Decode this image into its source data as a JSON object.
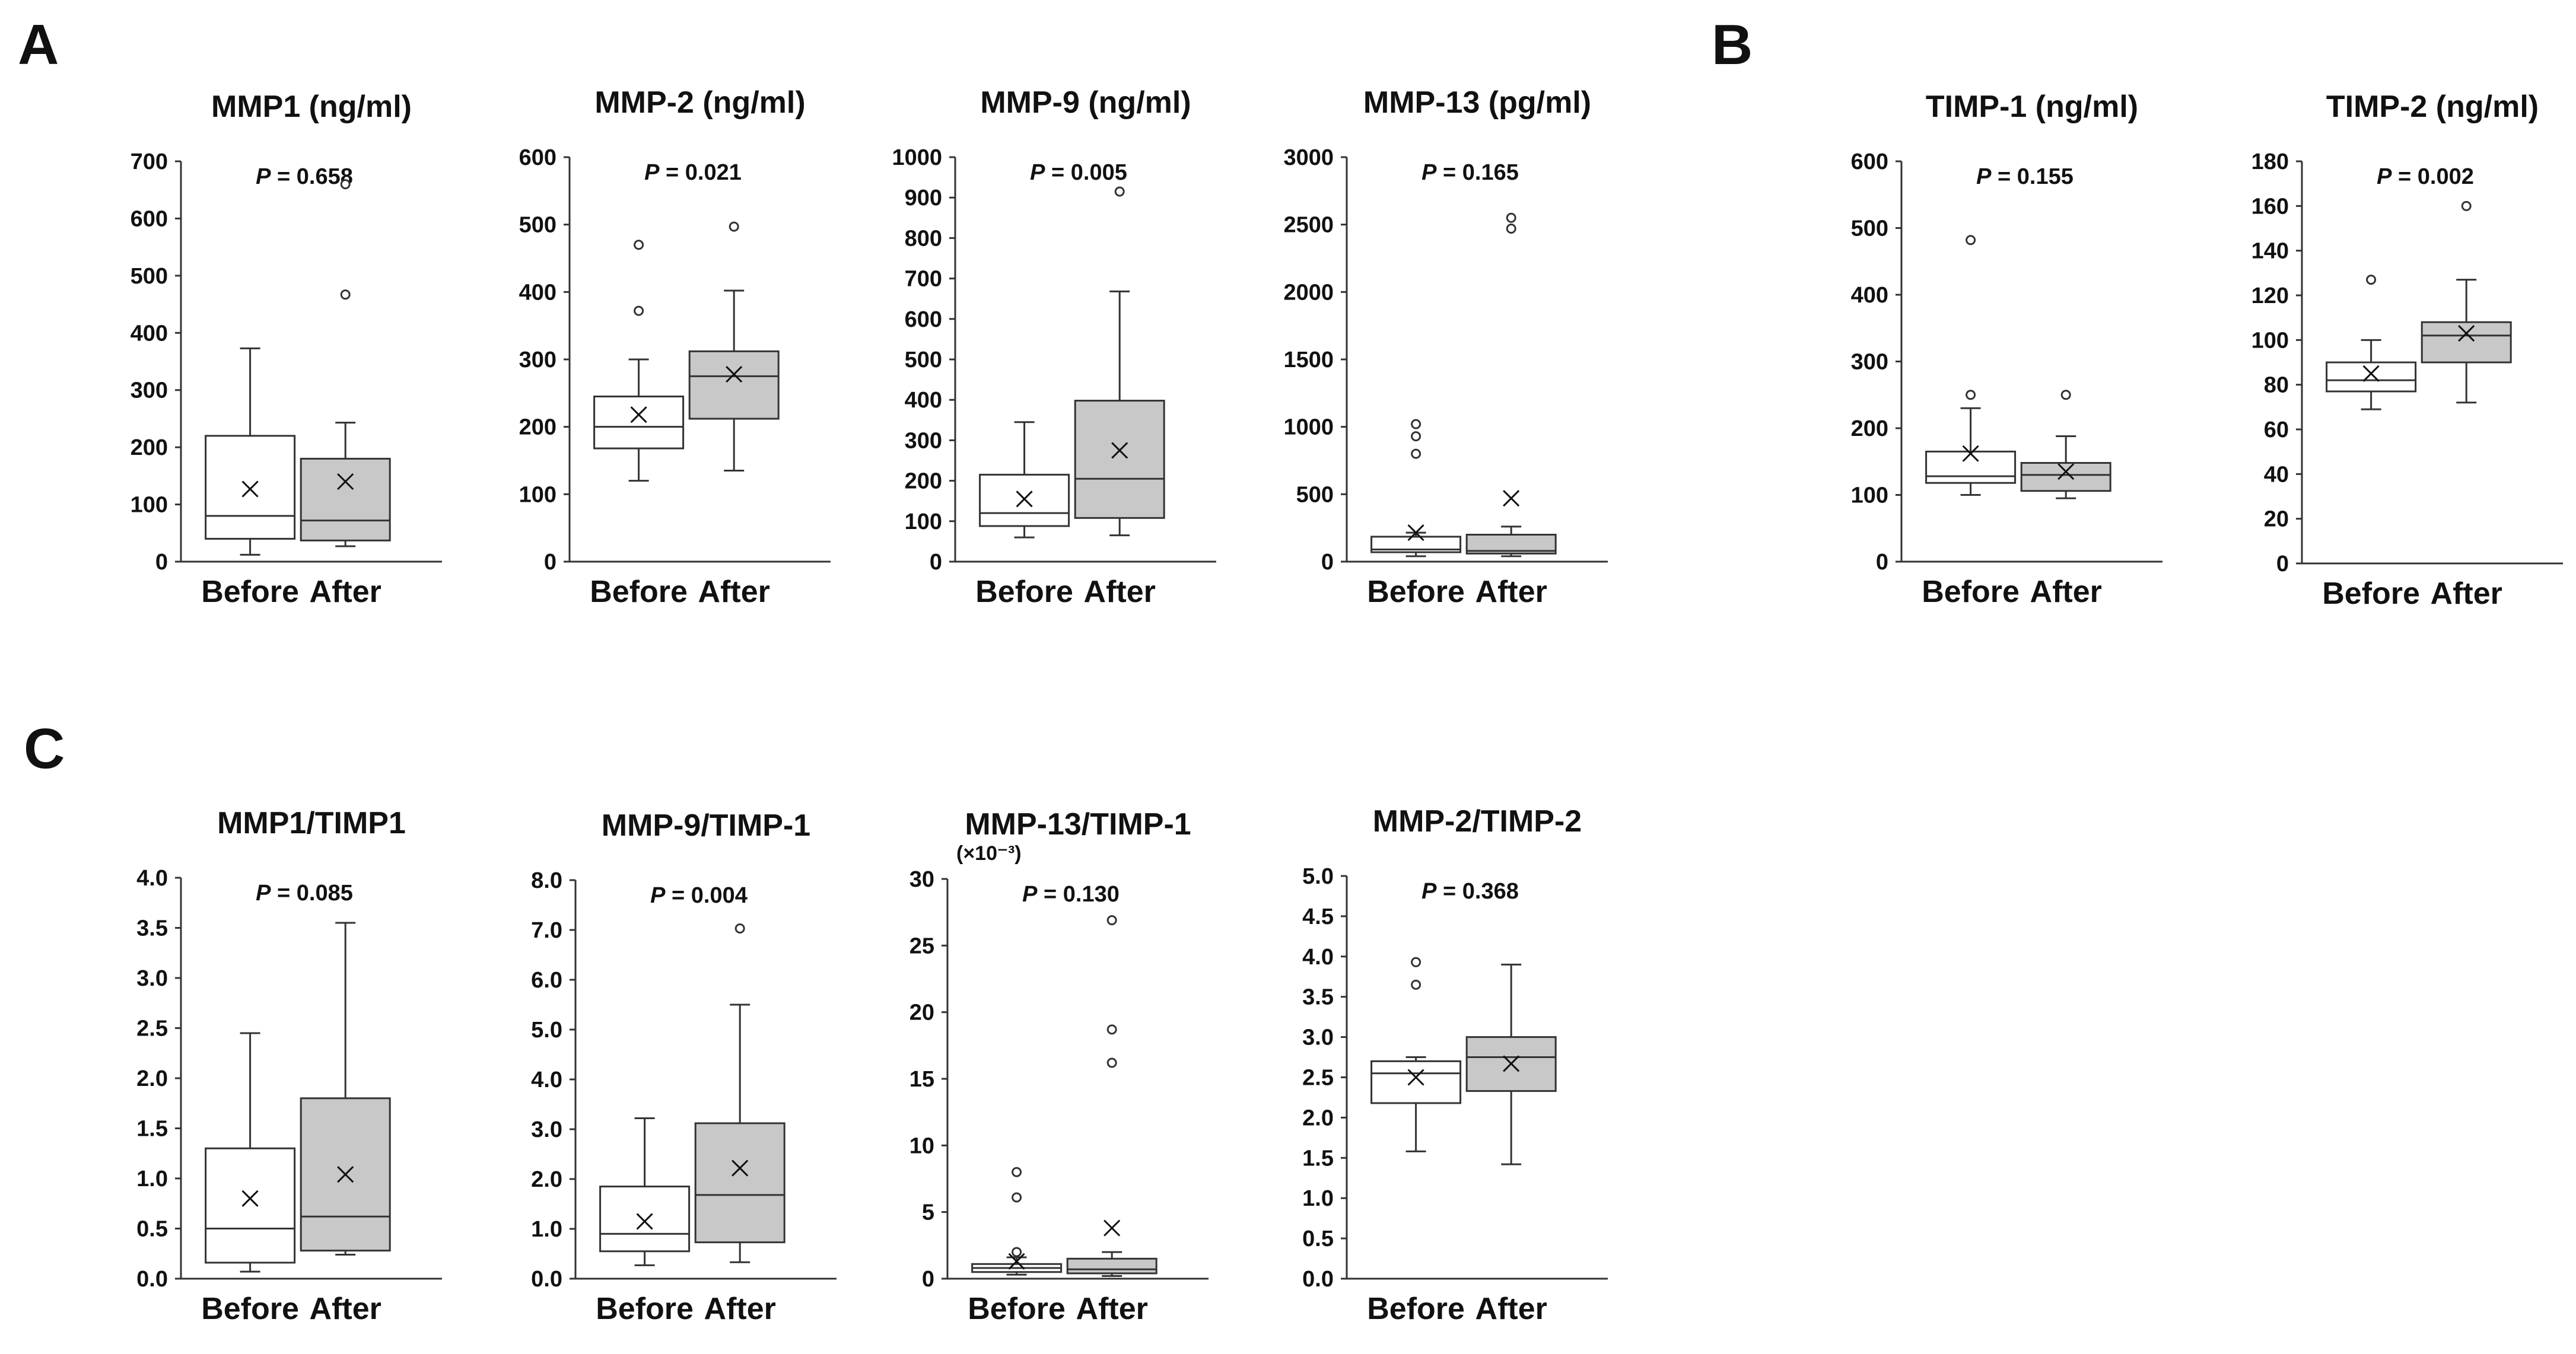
{
  "panels": [
    {
      "letter": "A"
    },
    {
      "letter": "B"
    },
    {
      "letter": "C"
    }
  ],
  "chart_data": [
    {
      "type": "box",
      "panel": "A",
      "title": "MMP1 (ng/ml)",
      "p_value": "P = 0.658",
      "ylim": [
        0,
        700
      ],
      "yticks": [
        "0",
        "100",
        "200",
        "300",
        "400",
        "500",
        "600",
        "700"
      ],
      "categories": [
        "Before",
        "After"
      ],
      "boxes": [
        {
          "name": "Before",
          "fill": "#ffffff",
          "whisker_low": 12,
          "q1": 40,
          "median": 80,
          "q3": 220,
          "whisker_high": 373,
          "mean": 127,
          "outliers": []
        },
        {
          "name": "After",
          "fill": "#c8c8c8",
          "whisker_low": 27,
          "q1": 37,
          "median": 72,
          "q3": 180,
          "whisker_high": 243,
          "mean": 140,
          "outliers": [
            467,
            660
          ]
        }
      ]
    },
    {
      "type": "box",
      "panel": "A",
      "title": "MMP-2 (ng/ml)",
      "p_value": "P = 0.021",
      "ylim": [
        0,
        600
      ],
      "yticks": [
        "0",
        "100",
        "200",
        "300",
        "400",
        "500",
        "600"
      ],
      "categories": [
        "Before",
        "After"
      ],
      "boxes": [
        {
          "name": "Before",
          "fill": "#ffffff",
          "whisker_low": 120,
          "q1": 168,
          "median": 200,
          "q3": 245,
          "whisker_high": 300,
          "mean": 218,
          "outliers": [
            372,
            470
          ]
        },
        {
          "name": "After",
          "fill": "#c8c8c8",
          "whisker_low": 135,
          "q1": 212,
          "median": 275,
          "q3": 312,
          "whisker_high": 402,
          "mean": 278,
          "outliers": [
            497
          ]
        }
      ]
    },
    {
      "type": "box",
      "panel": "A",
      "title": "MMP-9 (ng/ml)",
      "p_value": "P = 0.005",
      "ylim": [
        0,
        1000
      ],
      "yticks": [
        "0",
        "100",
        "200",
        "300",
        "400",
        "500",
        "600",
        "700",
        "800",
        "900",
        "1000"
      ],
      "categories": [
        "Before",
        "After"
      ],
      "boxes": [
        {
          "name": "Before",
          "fill": "#ffffff",
          "whisker_low": 60,
          "q1": 88,
          "median": 120,
          "q3": 215,
          "whisker_high": 345,
          "mean": 155,
          "outliers": []
        },
        {
          "name": "After",
          "fill": "#c8c8c8",
          "whisker_low": 65,
          "q1": 108,
          "median": 205,
          "q3": 398,
          "whisker_high": 668,
          "mean": 275,
          "outliers": [
            915
          ]
        }
      ]
    },
    {
      "type": "box",
      "panel": "A",
      "title": "MMP-13 (pg/ml)",
      "p_value": "P = 0.165",
      "ylim": [
        0,
        3000
      ],
      "yticks": [
        "0",
        "500",
        "1000",
        "1500",
        "2000",
        "2500",
        "3000"
      ],
      "categories": [
        "Before",
        "After"
      ],
      "boxes": [
        {
          "name": "Before",
          "fill": "#ffffff",
          "whisker_low": 40,
          "q1": 70,
          "median": 90,
          "q3": 185,
          "whisker_high": 215,
          "mean": 215,
          "outliers": [
            800,
            930,
            1020
          ]
        },
        {
          "name": "After",
          "fill": "#c8c8c8",
          "whisker_low": 40,
          "q1": 60,
          "median": 80,
          "q3": 200,
          "whisker_high": 260,
          "mean": 470,
          "outliers": [
            2470,
            2550
          ]
        }
      ]
    },
    {
      "type": "box",
      "panel": "B",
      "title": "TIMP-1 (ng/ml)",
      "p_value": "P = 0.155",
      "ylim": [
        0,
        600
      ],
      "yticks": [
        "0",
        "100",
        "200",
        "300",
        "400",
        "500",
        "600"
      ],
      "categories": [
        "Before",
        "After"
      ],
      "boxes": [
        {
          "name": "Before",
          "fill": "#ffffff",
          "whisker_low": 100,
          "q1": 118,
          "median": 128,
          "q3": 165,
          "whisker_high": 230,
          "mean": 162,
          "outliers": [
            250,
            482
          ]
        },
        {
          "name": "After",
          "fill": "#c8c8c8",
          "whisker_low": 95,
          "q1": 106,
          "median": 130,
          "q3": 148,
          "whisker_high": 188,
          "mean": 135,
          "outliers": [
            250
          ]
        }
      ]
    },
    {
      "type": "box",
      "panel": "B",
      "title": "TIMP-2 (ng/ml)",
      "p_value": "P = 0.002",
      "ylim": [
        0,
        180
      ],
      "yticks": [
        "0",
        "20",
        "40",
        "60",
        "80",
        "100",
        "120",
        "140",
        "160",
        "180"
      ],
      "categories": [
        "Before",
        "After"
      ],
      "boxes": [
        {
          "name": "Before",
          "fill": "#ffffff",
          "whisker_low": 69,
          "q1": 77,
          "median": 82,
          "q3": 90,
          "whisker_high": 100,
          "mean": 85,
          "outliers": [
            127
          ]
        },
        {
          "name": "After",
          "fill": "#c8c8c8",
          "whisker_low": 72,
          "q1": 90,
          "median": 102,
          "q3": 108,
          "whisker_high": 127,
          "mean": 103,
          "outliers": [
            160
          ]
        }
      ]
    },
    {
      "type": "box",
      "panel": "C",
      "title": "MMP1/TIMP1",
      "p_value": "P = 0.085",
      "ylim": [
        0,
        4
      ],
      "yticks": [
        "0.0",
        "0.5",
        "1.0",
        "1.5",
        "2.0",
        "2.5",
        "3.0",
        "3.5",
        "4.0"
      ],
      "categories": [
        "Before",
        "After"
      ],
      "boxes": [
        {
          "name": "Before",
          "fill": "#ffffff",
          "whisker_low": 0.07,
          "q1": 0.16,
          "median": 0.5,
          "q3": 1.3,
          "whisker_high": 2.45,
          "mean": 0.8,
          "outliers": []
        },
        {
          "name": "After",
          "fill": "#c8c8c8",
          "whisker_low": 0.24,
          "q1": 0.28,
          "median": 0.62,
          "q3": 1.8,
          "whisker_high": 3.55,
          "mean": 1.04,
          "outliers": []
        }
      ]
    },
    {
      "type": "box",
      "panel": "C",
      "title": "MMP-9/TIMP-1",
      "p_value": "P = 0.004",
      "ylim": [
        0,
        8
      ],
      "yticks": [
        "0.0",
        "1.0",
        "2.0",
        "3.0",
        "4.0",
        "5.0",
        "6.0",
        "7.0",
        "8.0"
      ],
      "categories": [
        "Before",
        "After"
      ],
      "boxes": [
        {
          "name": "Before",
          "fill": "#ffffff",
          "whisker_low": 0.27,
          "q1": 0.55,
          "median": 0.9,
          "q3": 1.85,
          "whisker_high": 3.22,
          "mean": 1.15,
          "outliers": []
        },
        {
          "name": "After",
          "fill": "#c8c8c8",
          "whisker_low": 0.33,
          "q1": 0.73,
          "median": 1.68,
          "q3": 3.12,
          "whisker_high": 5.5,
          "mean": 2.22,
          "outliers": [
            7.03
          ]
        }
      ]
    },
    {
      "type": "box",
      "panel": "C",
      "title": "MMP-13/TIMP-1",
      "p_value": "P = 0.130",
      "exponent_label": "(×10⁻³)",
      "ylim": [
        0,
        30
      ],
      "yticks": [
        "0",
        "5",
        "10",
        "15",
        "20",
        "25",
        "30"
      ],
      "categories": [
        "Before",
        "After"
      ],
      "boxes": [
        {
          "name": "Before",
          "fill": "#ffffff",
          "whisker_low": 0.3,
          "q1": 0.5,
          "median": 0.8,
          "q3": 1.1,
          "whisker_high": 1.6,
          "mean": 1.3,
          "outliers": [
            2.0,
            6.1,
            8.0
          ]
        },
        {
          "name": "After",
          "fill": "#c8c8c8",
          "whisker_low": 0.2,
          "q1": 0.4,
          "median": 0.7,
          "q3": 1.5,
          "whisker_high": 2.0,
          "mean": 3.8,
          "outliers": [
            16.2,
            18.7,
            26.9
          ]
        }
      ]
    },
    {
      "type": "box",
      "panel": "C",
      "title": "MMP-2/TIMP-2",
      "p_value": "P = 0.368",
      "ylim": [
        0,
        5
      ],
      "yticks": [
        "0.0",
        "0.5",
        "1.0",
        "1.5",
        "2.0",
        "2.5",
        "3.0",
        "3.5",
        "4.0",
        "4.5",
        "5.0"
      ],
      "categories": [
        "Before",
        "After"
      ],
      "boxes": [
        {
          "name": "Before",
          "fill": "#ffffff",
          "whisker_low": 1.58,
          "q1": 2.18,
          "median": 2.55,
          "q3": 2.7,
          "whisker_high": 2.75,
          "mean": 2.5,
          "outliers": [
            3.65,
            3.93
          ]
        },
        {
          "name": "After",
          "fill": "#c8c8c8",
          "whisker_low": 1.42,
          "q1": 2.33,
          "median": 2.75,
          "q3": 3.0,
          "whisker_high": 3.9,
          "mean": 2.67,
          "outliers": []
        }
      ]
    }
  ]
}
